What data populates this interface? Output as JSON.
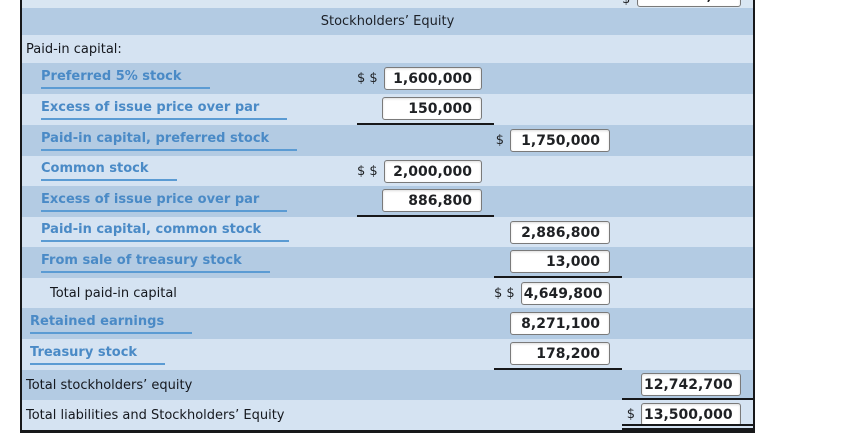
{
  "colors": {
    "row_dark": "#b3cbe3",
    "row_light": "#d5e3f2",
    "link_blue": "#4a8ac6",
    "link_underline": "#5b9bd3",
    "text_dark": "#15181e",
    "rule_black": "#17181a",
    "input_bg": "#ffffff",
    "input_border": "#7a7a7a"
  },
  "table": {
    "top_partial_row": {
      "prefix": "$",
      "value_fragment": ","
    },
    "rows": [
      {
        "label": "Stockholders’ Equity",
        "style": "header",
        "indent": 0,
        "amount": null
      },
      {
        "label": "Paid-in capital:",
        "style": "plain",
        "indent": 4,
        "amount": null
      },
      {
        "label": "Preferred 5% stock",
        "style": "link",
        "indent": 19,
        "amount": {
          "col": "a",
          "prefix": "$ $",
          "value": "1,600,000",
          "rule": null
        }
      },
      {
        "label": "Excess of issue price over par",
        "style": "link",
        "indent": 19,
        "amount": {
          "col": "a",
          "prefix": null,
          "value": "150,000",
          "rule": "single"
        }
      },
      {
        "label": "Paid-in capital, preferred stock",
        "style": "link",
        "indent": 19,
        "amount": {
          "col": "b",
          "prefix": "$",
          "value": "1,750,000",
          "rule": null
        }
      },
      {
        "label": "Common stock",
        "style": "link",
        "indent": 19,
        "amount": {
          "col": "a",
          "prefix": "$ $",
          "value": "2,000,000",
          "rule": null
        }
      },
      {
        "label": "Excess of issue price over par",
        "style": "link",
        "indent": 19,
        "amount": {
          "col": "a",
          "prefix": null,
          "value": "886,800",
          "rule": "single"
        }
      },
      {
        "label": "Paid-in capital, common stock",
        "style": "link",
        "indent": 19,
        "amount": {
          "col": "b",
          "prefix": null,
          "value": "2,886,800",
          "rule": null
        }
      },
      {
        "label": "From sale of treasury stock",
        "style": "link",
        "indent": 19,
        "amount": {
          "col": "b",
          "prefix": null,
          "value": "13,000",
          "rule": "single"
        }
      },
      {
        "label": "Total paid-in capital",
        "style": "plain",
        "indent": 28,
        "amount": {
          "col": "b",
          "prefix": "$ $",
          "value": "4,649,800",
          "rule": null
        }
      },
      {
        "label": "Retained earnings",
        "style": "link",
        "indent": 8,
        "amount": {
          "col": "b",
          "prefix": null,
          "value": "8,271,100",
          "rule": null
        }
      },
      {
        "label": "Treasury stock",
        "style": "link",
        "indent": 8,
        "amount": {
          "col": "b",
          "prefix": null,
          "value": "178,200",
          "rule": "single"
        }
      },
      {
        "label": "Total stockholders’ equity",
        "style": "plain",
        "indent": 4,
        "amount": {
          "col": "c",
          "prefix": null,
          "value": "12,742,700",
          "rule": "single"
        }
      },
      {
        "label": "Total liabilities and Stockholders’ Equity",
        "style": "plain",
        "indent": 4,
        "amount": {
          "col": "c",
          "prefix": "$",
          "value": "13,500,000",
          "rule": "double"
        }
      }
    ]
  }
}
